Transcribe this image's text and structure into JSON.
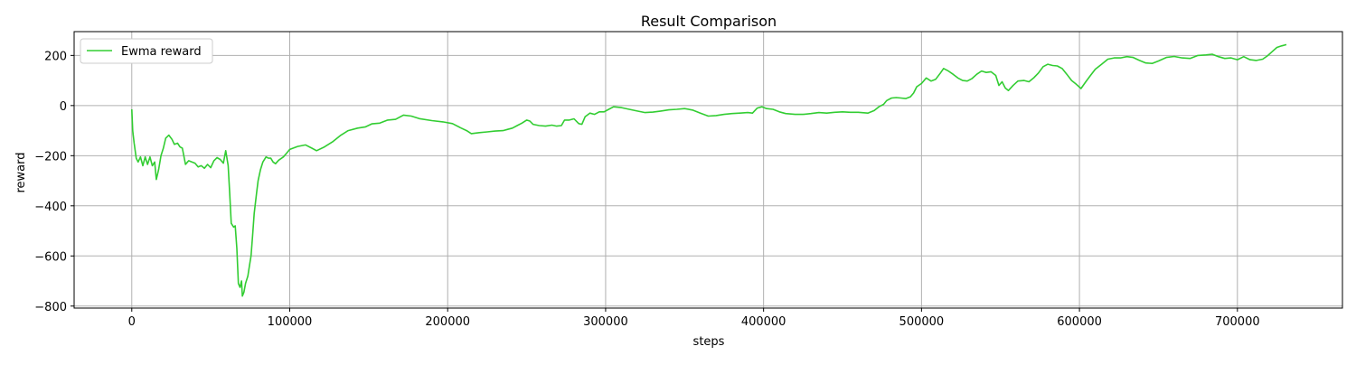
{
  "chart_data": {
    "type": "line",
    "title": "Result Comparison",
    "xlabel": "steps",
    "ylabel": "reward",
    "xlim": [
      -36500,
      766500
    ],
    "ylim": [
      -808,
      295
    ],
    "xticks": [
      0,
      100000,
      200000,
      300000,
      400000,
      500000,
      600000,
      700000
    ],
    "xtick_labels": [
      "0",
      "100000",
      "200000",
      "300000",
      "400000",
      "500000",
      "600000",
      "700000"
    ],
    "yticks": [
      200,
      0,
      -200,
      -400,
      -600,
      -800
    ],
    "ytick_labels": [
      "200",
      "0",
      "−200",
      "−400",
      "−600",
      "−800"
    ],
    "grid": true,
    "legend_position": "upper-left",
    "series": [
      {
        "name": "Ewma reward",
        "color": "#32cd32",
        "points": [
          [
            0,
            -15
          ],
          [
            600,
            -100
          ],
          [
            1500,
            -150
          ],
          [
            2800,
            -210
          ],
          [
            4000,
            -225
          ],
          [
            5500,
            -205
          ],
          [
            7000,
            -240
          ],
          [
            8500,
            -205
          ],
          [
            10000,
            -235
          ],
          [
            11500,
            -205
          ],
          [
            13000,
            -240
          ],
          [
            14500,
            -225
          ],
          [
            15500,
            -295
          ],
          [
            17000,
            -255
          ],
          [
            18500,
            -200
          ],
          [
            20000,
            -170
          ],
          [
            21500,
            -130
          ],
          [
            23500,
            -118
          ],
          [
            25500,
            -135
          ],
          [
            27000,
            -155
          ],
          [
            29000,
            -150
          ],
          [
            30500,
            -165
          ],
          [
            32000,
            -170
          ],
          [
            34000,
            -235
          ],
          [
            36000,
            -220
          ],
          [
            38000,
            -225
          ],
          [
            40000,
            -230
          ],
          [
            42000,
            -245
          ],
          [
            44000,
            -240
          ],
          [
            46000,
            -250
          ],
          [
            48000,
            -235
          ],
          [
            50000,
            -248
          ],
          [
            52000,
            -220
          ],
          [
            54000,
            -208
          ],
          [
            56000,
            -215
          ],
          [
            58000,
            -230
          ],
          [
            59500,
            -180
          ],
          [
            61000,
            -240
          ],
          [
            62000,
            -350
          ],
          [
            63000,
            -470
          ],
          [
            64500,
            -485
          ],
          [
            65500,
            -480
          ],
          [
            66500,
            -570
          ],
          [
            67500,
            -710
          ],
          [
            68500,
            -725
          ],
          [
            69500,
            -700
          ],
          [
            70000,
            -760
          ],
          [
            71000,
            -745
          ],
          [
            72000,
            -710
          ],
          [
            73500,
            -680
          ],
          [
            74500,
            -640
          ],
          [
            75500,
            -600
          ],
          [
            76500,
            -520
          ],
          [
            77500,
            -430
          ],
          [
            79000,
            -350
          ],
          [
            80000,
            -300
          ],
          [
            81500,
            -255
          ],
          [
            83000,
            -225
          ],
          [
            85000,
            -205
          ],
          [
            86500,
            -210
          ],
          [
            88000,
            -210
          ],
          [
            89500,
            -225
          ],
          [
            91000,
            -232
          ],
          [
            93000,
            -218
          ],
          [
            96000,
            -205
          ],
          [
            98000,
            -190
          ],
          [
            100000,
            -175
          ],
          [
            105000,
            -163
          ],
          [
            110000,
            -157
          ],
          [
            114000,
            -170
          ],
          [
            117000,
            -180
          ],
          [
            122000,
            -165
          ],
          [
            127000,
            -145
          ],
          [
            132000,
            -120
          ],
          [
            137000,
            -100
          ],
          [
            143000,
            -90
          ],
          [
            148000,
            -85
          ],
          [
            152000,
            -73
          ],
          [
            157000,
            -70
          ],
          [
            162000,
            -58
          ],
          [
            167000,
            -55
          ],
          [
            172000,
            -38
          ],
          [
            177000,
            -42
          ],
          [
            182000,
            -52
          ],
          [
            190000,
            -60
          ],
          [
            197000,
            -65
          ],
          [
            203000,
            -72
          ],
          [
            208000,
            -88
          ],
          [
            212000,
            -100
          ],
          [
            215000,
            -112
          ],
          [
            220000,
            -108
          ],
          [
            225000,
            -105
          ],
          [
            230000,
            -102
          ],
          [
            235000,
            -100
          ],
          [
            238000,
            -95
          ],
          [
            241000,
            -90
          ],
          [
            244000,
            -80
          ],
          [
            247000,
            -70
          ],
          [
            250000,
            -58
          ],
          [
            252000,
            -62
          ],
          [
            254000,
            -75
          ],
          [
            258000,
            -80
          ],
          [
            262000,
            -82
          ],
          [
            266000,
            -78
          ],
          [
            269000,
            -82
          ],
          [
            272000,
            -80
          ],
          [
            274000,
            -58
          ],
          [
            277000,
            -58
          ],
          [
            280000,
            -53
          ],
          [
            283000,
            -72
          ],
          [
            285000,
            -75
          ],
          [
            287000,
            -45
          ],
          [
            290000,
            -30
          ],
          [
            293000,
            -35
          ],
          [
            296000,
            -25
          ],
          [
            299000,
            -25
          ],
          [
            302000,
            -15
          ],
          [
            305000,
            -5
          ],
          [
            310000,
            -8
          ],
          [
            315000,
            -15
          ],
          [
            320000,
            -22
          ],
          [
            325000,
            -28
          ],
          [
            330000,
            -26
          ],
          [
            335000,
            -22
          ],
          [
            340000,
            -17
          ],
          [
            345000,
            -15
          ],
          [
            350000,
            -12
          ],
          [
            355000,
            -18
          ],
          [
            360000,
            -30
          ],
          [
            365000,
            -42
          ],
          [
            370000,
            -40
          ],
          [
            375000,
            -35
          ],
          [
            380000,
            -32
          ],
          [
            385000,
            -30
          ],
          [
            390000,
            -28
          ],
          [
            393000,
            -30
          ],
          [
            396000,
            -10
          ],
          [
            399000,
            -5
          ],
          [
            402000,
            -12
          ],
          [
            406000,
            -15
          ],
          [
            410000,
            -25
          ],
          [
            414000,
            -32
          ],
          [
            420000,
            -35
          ],
          [
            425000,
            -35
          ],
          [
            430000,
            -32
          ],
          [
            435000,
            -28
          ],
          [
            440000,
            -30
          ],
          [
            445000,
            -27
          ],
          [
            450000,
            -25
          ],
          [
            455000,
            -27
          ],
          [
            460000,
            -27
          ],
          [
            466000,
            -30
          ],
          [
            470000,
            -20
          ],
          [
            473000,
            -5
          ],
          [
            476000,
            5
          ],
          [
            478000,
            20
          ],
          [
            481000,
            30
          ],
          [
            484000,
            32
          ],
          [
            487000,
            30
          ],
          [
            490000,
            28
          ],
          [
            493000,
            35
          ],
          [
            495000,
            50
          ],
          [
            497000,
            75
          ],
          [
            500000,
            88
          ],
          [
            503000,
            110
          ],
          [
            506000,
            98
          ],
          [
            509000,
            105
          ],
          [
            512000,
            130
          ],
          [
            514000,
            148
          ],
          [
            517000,
            138
          ],
          [
            520000,
            125
          ],
          [
            523000,
            110
          ],
          [
            526000,
            100
          ],
          [
            529000,
            98
          ],
          [
            532000,
            108
          ],
          [
            535000,
            125
          ],
          [
            538000,
            138
          ],
          [
            541000,
            132
          ],
          [
            544000,
            135
          ],
          [
            547000,
            120
          ],
          [
            549000,
            80
          ],
          [
            551000,
            95
          ],
          [
            553000,
            70
          ],
          [
            555000,
            60
          ],
          [
            558000,
            80
          ],
          [
            561000,
            98
          ],
          [
            565000,
            100
          ],
          [
            568000,
            95
          ],
          [
            571000,
            110
          ],
          [
            574000,
            130
          ],
          [
            577000,
            155
          ],
          [
            580000,
            165
          ],
          [
            583000,
            160
          ],
          [
            586000,
            158
          ],
          [
            589000,
            148
          ],
          [
            592000,
            125
          ],
          [
            595000,
            100
          ],
          [
            598000,
            85
          ],
          [
            601000,
            68
          ],
          [
            604000,
            95
          ],
          [
            607000,
            120
          ],
          [
            610000,
            145
          ],
          [
            614000,
            165
          ],
          [
            618000,
            185
          ],
          [
            622000,
            190
          ],
          [
            626000,
            190
          ],
          [
            630000,
            195
          ],
          [
            634000,
            192
          ],
          [
            638000,
            180
          ],
          [
            642000,
            170
          ],
          [
            646000,
            168
          ],
          [
            650000,
            178
          ],
          [
            655000,
            192
          ],
          [
            660000,
            196
          ],
          [
            665000,
            190
          ],
          [
            670000,
            188
          ],
          [
            675000,
            200
          ],
          [
            680000,
            202
          ],
          [
            684000,
            205
          ],
          [
            688000,
            195
          ],
          [
            692000,
            188
          ],
          [
            696000,
            190
          ],
          [
            700000,
            183
          ],
          [
            704000,
            195
          ],
          [
            708000,
            183
          ],
          [
            712000,
            180
          ],
          [
            716000,
            185
          ],
          [
            719000,
            198
          ],
          [
            722000,
            215
          ],
          [
            725000,
            232
          ],
          [
            728000,
            238
          ],
          [
            731000,
            243
          ]
        ]
      }
    ]
  }
}
